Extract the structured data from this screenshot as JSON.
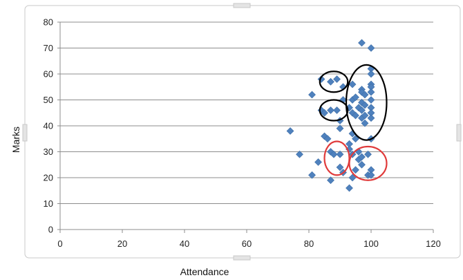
{
  "chart_data": {
    "type": "scatter",
    "title": "",
    "xlabel": "Attendance",
    "ylabel": "Marks",
    "xlim": [
      0,
      120
    ],
    "ylim": [
      0,
      80
    ],
    "xticks": [
      0,
      20,
      40,
      60,
      80,
      100,
      120
    ],
    "yticks": [
      0,
      10,
      20,
      30,
      40,
      50,
      60,
      70,
      80
    ],
    "grid": "horizontal",
    "legend": "none",
    "marker_color": "#4f81bd",
    "series": [
      {
        "points": [
          [
            74,
            38
          ],
          [
            77,
            29
          ],
          [
            81,
            21
          ],
          [
            81,
            52
          ],
          [
            83,
            26
          ],
          [
            84,
            58
          ],
          [
            84,
            46
          ],
          [
            85,
            36
          ],
          [
            85,
            45
          ],
          [
            86,
            35
          ],
          [
            87,
            57
          ],
          [
            87,
            46
          ],
          [
            87,
            30
          ],
          [
            87,
            19
          ],
          [
            88,
            29
          ],
          [
            89,
            58
          ],
          [
            89,
            46
          ],
          [
            90,
            42
          ],
          [
            90,
            39
          ],
          [
            90,
            29
          ],
          [
            90,
            24
          ],
          [
            91,
            55
          ],
          [
            91,
            50
          ],
          [
            91,
            22
          ],
          [
            93,
            47
          ],
          [
            93,
            33
          ],
          [
            93,
            31
          ],
          [
            93,
            16
          ],
          [
            94,
            56
          ],
          [
            94,
            50
          ],
          [
            94,
            45
          ],
          [
            94,
            37
          ],
          [
            94,
            29
          ],
          [
            94,
            20
          ],
          [
            95,
            51
          ],
          [
            95,
            44
          ],
          [
            95,
            35
          ],
          [
            95,
            23
          ],
          [
            96,
            47
          ],
          [
            96,
            30
          ],
          [
            96,
            27
          ],
          [
            97,
            72
          ],
          [
            97,
            54
          ],
          [
            97,
            53
          ],
          [
            97,
            49
          ],
          [
            97,
            46
          ],
          [
            97,
            43
          ],
          [
            97,
            28
          ],
          [
            97,
            25
          ],
          [
            98,
            52
          ],
          [
            98,
            48
          ],
          [
            98,
            44
          ],
          [
            98,
            41
          ],
          [
            99,
            29
          ],
          [
            99,
            21
          ],
          [
            100,
            70
          ],
          [
            100,
            62
          ],
          [
            100,
            60
          ],
          [
            100,
            56
          ],
          [
            100,
            55
          ],
          [
            100,
            53
          ],
          [
            100,
            50
          ],
          [
            100,
            47
          ],
          [
            100,
            45
          ],
          [
            100,
            43
          ],
          [
            100,
            35
          ],
          [
            100,
            23
          ],
          [
            100,
            21
          ]
        ]
      }
    ],
    "annotations": [
      {
        "shape": "ellipse",
        "color": "#000000",
        "cx": 88,
        "cy": 57,
        "rx": 4.5,
        "ry": 4
      },
      {
        "shape": "ellipse",
        "color": "#000000",
        "cx": 88,
        "cy": 46,
        "rx": 4.5,
        "ry": 4
      },
      {
        "shape": "ellipse",
        "color": "#000000",
        "cx": 98.5,
        "cy": 49,
        "rx": 6.5,
        "ry": 14.5
      },
      {
        "shape": "ellipse",
        "color": "#e03a3a",
        "cx": 89,
        "cy": 27.5,
        "rx": 4,
        "ry": 6.5
      },
      {
        "shape": "ellipse",
        "color": "#e03a3a",
        "cx": 99,
        "cy": 25.5,
        "rx": 6,
        "ry": 6.5
      }
    ]
  }
}
